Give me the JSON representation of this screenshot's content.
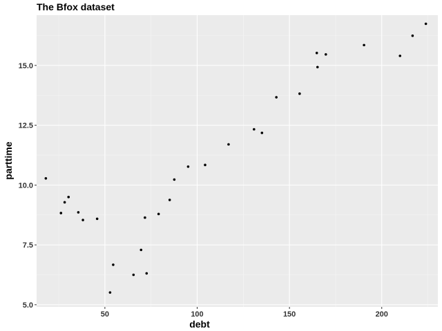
{
  "chart_data": {
    "type": "scatter",
    "title": "The Bfox dataset",
    "xlabel": "debt",
    "ylabel": "parttime",
    "xlim": [
      13.0,
      230.4
    ],
    "ylim": [
      4.91,
      17.1
    ],
    "xticks": [
      50,
      100,
      150,
      200
    ],
    "yticks": [
      5.0,
      7.5,
      10.0,
      12.5,
      15.0
    ],
    "ytick_labels": [
      "5.0",
      "7.5",
      "10.0",
      "12.5",
      "15.0"
    ],
    "grid": true,
    "legend": "none",
    "colors": {
      "panel": "#EBEBEB",
      "grid_major": "#FFFFFF",
      "point": "#000000",
      "tick_text": "#333333"
    },
    "points": [
      {
        "x": 18.0,
        "y": 10.28
      },
      {
        "x": 26.2,
        "y": 8.83
      },
      {
        "x": 28.2,
        "y": 9.28
      },
      {
        "x": 30.3,
        "y": 9.5
      },
      {
        "x": 35.6,
        "y": 8.86
      },
      {
        "x": 38.1,
        "y": 8.54
      },
      {
        "x": 45.8,
        "y": 8.59
      },
      {
        "x": 52.8,
        "y": 5.51
      },
      {
        "x": 54.5,
        "y": 6.67
      },
      {
        "x": 65.5,
        "y": 6.25
      },
      {
        "x": 69.6,
        "y": 7.29
      },
      {
        "x": 71.7,
        "y": 8.64
      },
      {
        "x": 72.6,
        "y": 6.31
      },
      {
        "x": 79.1,
        "y": 8.79
      },
      {
        "x": 85.1,
        "y": 9.38
      },
      {
        "x": 87.6,
        "y": 10.23
      },
      {
        "x": 95.1,
        "y": 10.77
      },
      {
        "x": 104.3,
        "y": 10.84
      },
      {
        "x": 117.0,
        "y": 11.7
      },
      {
        "x": 130.8,
        "y": 12.33
      },
      {
        "x": 135.1,
        "y": 12.18
      },
      {
        "x": 142.9,
        "y": 13.67
      },
      {
        "x": 155.5,
        "y": 13.82
      },
      {
        "x": 164.8,
        "y": 15.52
      },
      {
        "x": 165.2,
        "y": 14.93
      },
      {
        "x": 169.7,
        "y": 15.46
      },
      {
        "x": 190.4,
        "y": 15.85
      },
      {
        "x": 209.9,
        "y": 15.4
      },
      {
        "x": 216.7,
        "y": 16.24
      },
      {
        "x": 223.9,
        "y": 16.74
      }
    ]
  }
}
